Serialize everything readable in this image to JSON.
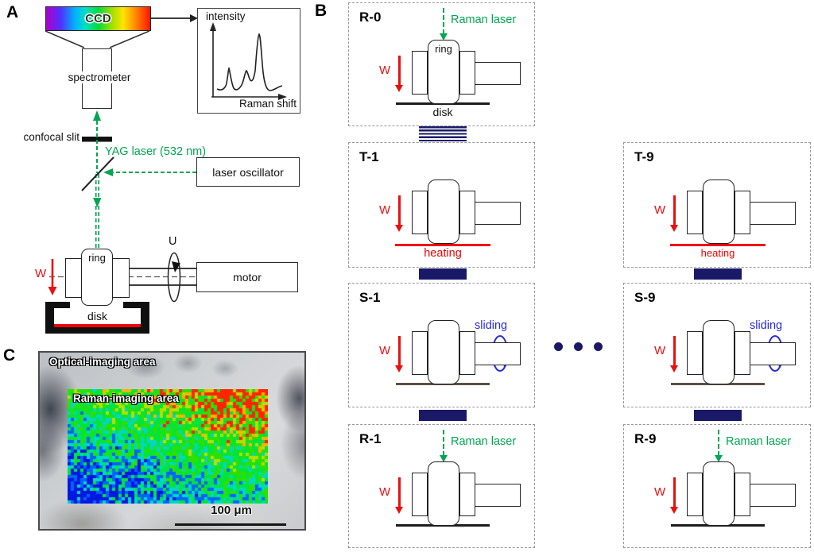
{
  "colors": {
    "laser_green": "#00a651",
    "load_red": "#e81010",
    "heating_red": "#f30000",
    "sliding_blue": "#2b2bd8",
    "block_navy": "#191968"
  },
  "panel_a": {
    "label": "A",
    "ccd_label": "CCD",
    "spectrometer_label": "spectrometer",
    "plot": {
      "ylabel": "intensity",
      "xlabel": "Raman shift"
    },
    "confocal_slit_label": "confocal slit",
    "yag_laser_label": "YAG laser (532 nm)",
    "laser_oscillator_label": "laser oscillator",
    "motor_label": "motor",
    "ring_label": "ring",
    "disk_label": "disk",
    "load_label": "W",
    "speed_label": "U"
  },
  "panel_b": {
    "label": "B",
    "shared": {
      "raman_laser": "Raman laser",
      "heating": "heating",
      "sliding": "sliding",
      "load": "W",
      "ring": "ring",
      "disk": "disk"
    },
    "panels": [
      {
        "id": "R-0",
        "type": "raman"
      },
      {
        "id": "T-1",
        "type": "heating"
      },
      {
        "id": "S-1",
        "type": "sliding"
      },
      {
        "id": "R-1",
        "type": "raman"
      },
      {
        "id": "T-9",
        "type": "heating"
      },
      {
        "id": "S-9",
        "type": "sliding"
      },
      {
        "id": "R-9",
        "type": "raman"
      }
    ]
  },
  "panel_c": {
    "label": "C",
    "optical_area_label": "Optical-imaging area",
    "raman_area_label": "Raman-imaging area",
    "scale_label": "100 μm"
  }
}
